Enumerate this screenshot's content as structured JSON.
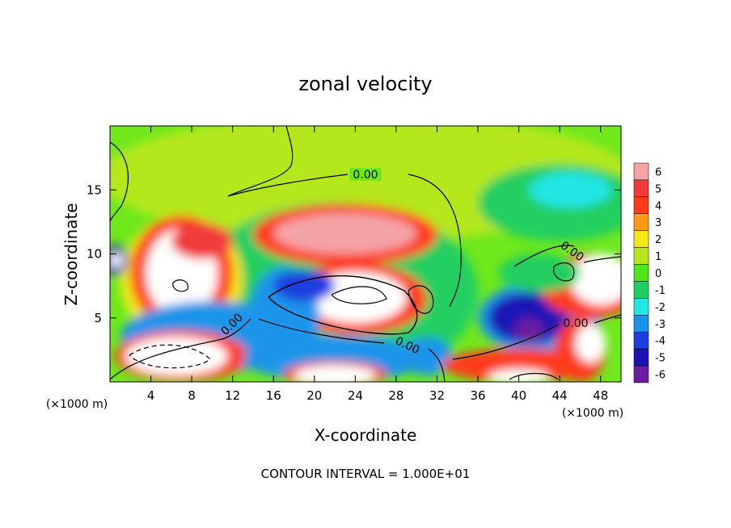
{
  "chart_data": {
    "type": "heatmap",
    "title": "zonal velocity",
    "xlabel": "X-coordinate",
    "ylabel": "Z-coordinate",
    "x_units": "(×1000 m)",
    "y_units": "(×1000 m)",
    "xlim": [
      0,
      50
    ],
    "ylim": [
      0,
      20
    ],
    "x_ticks": [
      4,
      8,
      12,
      16,
      20,
      24,
      28,
      32,
      36,
      40,
      44,
      48
    ],
    "y_ticks": [
      5,
      10,
      15
    ],
    "colorbar": {
      "levels": [
        6,
        5,
        4,
        3,
        2,
        1,
        0,
        -1,
        -2,
        -3,
        -4,
        -5,
        -6
      ],
      "colors": [
        "#f4a3a6",
        "#f23b3b",
        "#ff3a1a",
        "#ff9a14",
        "#f4e81a",
        "#b4e81c",
        "#4ee61a",
        "#21cf61",
        "#20e6e4",
        "#1a94e9",
        "#1a3ee0",
        "#1c13b5",
        "#6a1d9d"
      ],
      "out_of_range_positive": "#ffffff"
    },
    "contour_labels": [
      "0.00",
      "0.00",
      "0.00",
      "0.00",
      "0.00"
    ],
    "footer": "CONTOUR INTERVAL = 1.000E+01",
    "regions": [
      {
        "x": 25,
        "y": 16,
        "rx": 26,
        "ry": 5,
        "level": 1
      },
      {
        "x": 44,
        "y": 14,
        "rx": 8,
        "ry": 3,
        "level": -1
      },
      {
        "x": 45,
        "y": 15,
        "rx": 4,
        "ry": 1.4,
        "level": -2
      },
      {
        "x": 22,
        "y": 7,
        "rx": 14,
        "ry": 7,
        "level": -1
      },
      {
        "x": 7,
        "y": 8,
        "rx": 6,
        "ry": 5,
        "level": 2
      },
      {
        "x": 7,
        "y": 8.5,
        "rx": 5,
        "ry": 4.5,
        "level": 4
      },
      {
        "x": 7,
        "y": 8.5,
        "rx": 3.5,
        "ry": 3.5,
        "level": 7
      },
      {
        "x": 23,
        "y": 11.5,
        "rx": 9,
        "ry": 2.4,
        "level": 4
      },
      {
        "x": 23,
        "y": 11.6,
        "rx": 7,
        "ry": 1.6,
        "level": 6
      },
      {
        "x": 9,
        "y": 11,
        "rx": 3,
        "ry": 1.4,
        "level": 5
      },
      {
        "x": 24,
        "y": 6.5,
        "rx": 7,
        "ry": 2.8,
        "level": 4
      },
      {
        "x": 24,
        "y": 6.6,
        "rx": 5,
        "ry": 2,
        "level": 7
      },
      {
        "x": 10,
        "y": 3.5,
        "rx": 9,
        "ry": 2.8,
        "level": -3
      },
      {
        "x": 7,
        "y": 2,
        "rx": 6.5,
        "ry": 2,
        "level": 4
      },
      {
        "x": 6.5,
        "y": 2,
        "rx": 5,
        "ry": 1.5,
        "level": 7
      },
      {
        "x": 17,
        "y": 5,
        "rx": 3.5,
        "ry": 4,
        "level": -3
      },
      {
        "x": 19,
        "y": 7.5,
        "rx": 3,
        "ry": 1.2,
        "level": -4
      },
      {
        "x": 22,
        "y": 1.8,
        "rx": 9,
        "ry": 1.8,
        "level": -3
      },
      {
        "x": 22,
        "y": 0.6,
        "rx": 5,
        "ry": 1,
        "level": 4
      },
      {
        "x": 22,
        "y": 0.5,
        "rx": 4,
        "ry": 0.8,
        "level": 7
      },
      {
        "x": 31,
        "y": 2,
        "rx": 2.5,
        "ry": 1.5,
        "level": -3
      },
      {
        "x": 42,
        "y": 5,
        "rx": 6,
        "ry": 2.8,
        "level": -3
      },
      {
        "x": 41,
        "y": 5,
        "rx": 4,
        "ry": 2,
        "level": -5
      },
      {
        "x": 41,
        "y": 4,
        "rx": 1.5,
        "ry": 1,
        "level": -6
      },
      {
        "x": 40,
        "y": 1.3,
        "rx": 7.5,
        "ry": 1.3,
        "level": 4
      },
      {
        "x": 40,
        "y": 0.4,
        "rx": 3,
        "ry": 0.6,
        "level": 7
      },
      {
        "x": 46,
        "y": 2.5,
        "rx": 2.5,
        "ry": 2.5,
        "level": 4
      },
      {
        "x": 47,
        "y": 3,
        "rx": 1.5,
        "ry": 1.5,
        "level": 7
      },
      {
        "x": 47,
        "y": 7.5,
        "rx": 5,
        "ry": 2.5,
        "level": 4
      },
      {
        "x": 48,
        "y": 8,
        "rx": 3,
        "ry": 2,
        "level": 7
      },
      {
        "x": 42,
        "y": 8.5,
        "rx": 4,
        "ry": 1.5,
        "level": -1
      },
      {
        "x": 0.5,
        "y": 9.5,
        "rx": 1.2,
        "ry": 1.2,
        "level": -5
      },
      {
        "x": 0.6,
        "y": 9.5,
        "rx": 0.6,
        "ry": 0.6,
        "level": 7
      }
    ]
  }
}
